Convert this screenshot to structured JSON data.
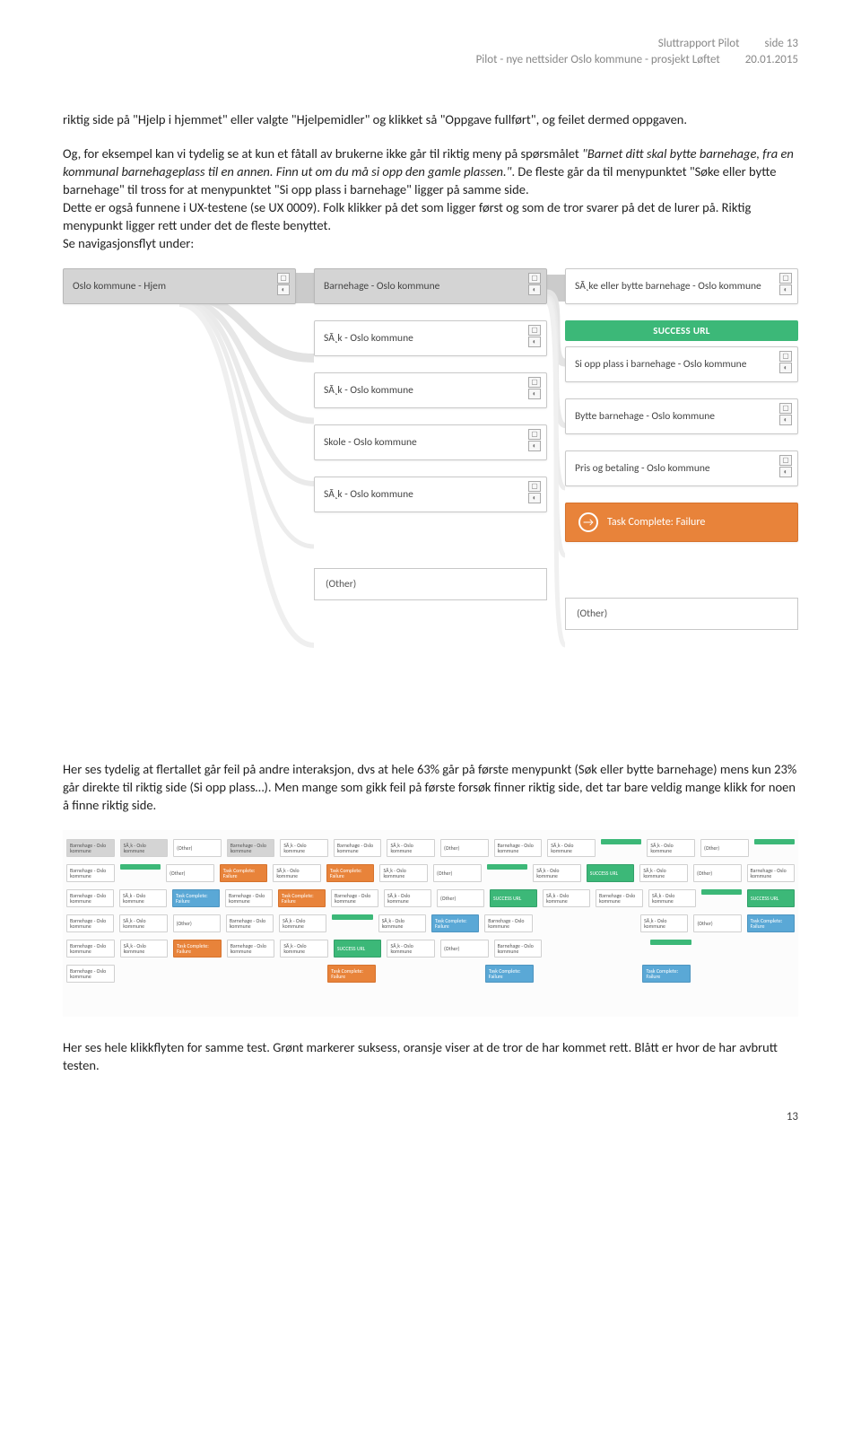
{
  "header": {
    "title": "Sluttrapport Pilot",
    "page_label": "side 13",
    "subtitle": "Pilot - nye nettsider Oslo kommune - prosjekt  Løftet",
    "date": "20.01.2015"
  },
  "para1_a": "riktig side på \"Hjelp i hjemmet\" eller valgte \"Hjelpemidler\" og klikket så \"Oppgave fullført\", og feilet dermed oppgaven.",
  "para2_a": "Og, for eksempel kan vi tydelig se at kun et fåtall av brukerne ikke går til riktig meny på spørsmålet ",
  "para2_quote": "\"Barnet ditt skal bytte barnehage, fra en kommunal barnehageplass til en annen. Finn ut om du må si opp den gamle plassen.\"",
  "para2_b": ". De fleste går da til menypunktet \"Søke eller bytte barnehage\" til tross for at menypunktet \"Si opp plass i barnehage\" ligger på samme side.",
  "para2_c": "Dette er også funnene i UX-testene (se UX 0009). Folk klikker på det som ligger først og som de tror svarer på det de lurer på. Riktig menypunkt ligger rett under det de fleste benyttet.",
  "para2_d": "Se navigasjonsflyt under:",
  "diagram1": {
    "col1": {
      "top": "Oslo kommune - Hjem"
    },
    "col2": {
      "n1": "Barnehage - Oslo kommune",
      "n2": "SÃ¸k - Oslo kommune",
      "n3": "SÃ¸k - Oslo kommune",
      "n4": "Skole - Oslo kommune",
      "n5": "SÃ¸k - Oslo kommune",
      "other": "(Other)"
    },
    "col3": {
      "n1": "SÃ¸ke eller bytte barnehage - Oslo kommune",
      "success": "SUCCESS URL",
      "n2": "Si opp plass i barnehage - Oslo kommune",
      "n3": "Bytte barnehage - Oslo kommune",
      "n4": "Pris og betaling - Oslo kommune",
      "failure": "Task Complete: Failure",
      "other": "(Other)"
    },
    "colors": {
      "flow_gray": "#cfcfcf",
      "flow_light": "#e6e6e6",
      "success_green": "#3cb878",
      "failure_orange": "#e8833a",
      "node_border": "#c8c8c8",
      "node_bg": "#ffffff",
      "top_gray": "#d4d4d4"
    }
  },
  "para3": "Her ses tydelig at flertallet går feil på andre interaksjon, dvs at hele 63% går på første menypunkt (Søk eller bytte barnehage) mens kun 23% går direkte til riktig side (Si opp plass…). Men mange som gikk feil på første forsøk finner riktig side, det tar bare veldig mange klikk for noen å finne riktig side.",
  "diagram2": {
    "rows": [
      [
        "gray",
        "gray",
        "white",
        "gray",
        "white",
        "white",
        "white",
        "white",
        "white",
        "white",
        "green_bar",
        "white",
        "white",
        "green_bar"
      ],
      [
        "white",
        "green_bar",
        "white",
        "orange",
        "white",
        "orange",
        "white",
        "white",
        "green_bar",
        "white",
        "green",
        "white",
        "white",
        "white"
      ],
      [
        "white",
        "white",
        "blue",
        "white",
        "orange",
        "white",
        "white",
        "white",
        "green",
        "white",
        "white",
        "white",
        "green_bar",
        "green"
      ],
      [
        "white",
        "white",
        "white",
        "white",
        "white",
        "green_bar",
        "white",
        "blue",
        "white",
        "empty",
        "empty",
        "white",
        "white",
        "blue"
      ],
      [
        "white",
        "white",
        "orange",
        "white",
        "white",
        "green",
        "white",
        "white",
        "white",
        "empty",
        "empty",
        "green_bar",
        "empty",
        "empty"
      ],
      [
        "white",
        "empty",
        "empty",
        "empty",
        "empty",
        "orange",
        "empty",
        "empty",
        "blue",
        "empty",
        "empty",
        "blue",
        "empty",
        "empty"
      ]
    ],
    "sample_labels": {
      "barnehage": "Barnehage - Oslo kommune",
      "sok": "SÃ¸k - Oslo kommune",
      "task_fail": "Task Complete: Failure",
      "success": "SUCCESS URL",
      "other": "(Other)"
    }
  },
  "para4": "Her ses hele klikkflyten for samme test. Grønt markerer suksess, oransje viser at de tror de har kommet rett. Blått er hvor de har avbrutt testen.",
  "page_number": "13"
}
